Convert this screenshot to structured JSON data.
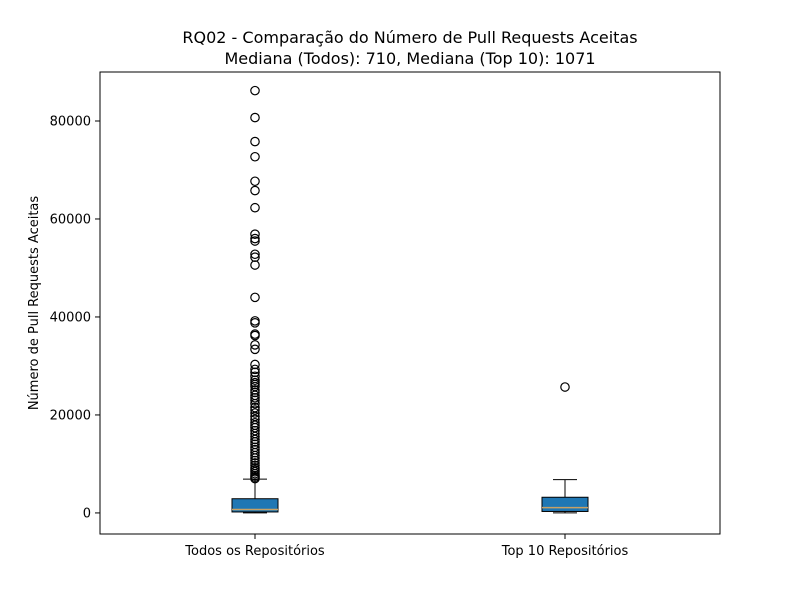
{
  "chart_data": {
    "type": "box",
    "title": "RQ02 - Comparação do Número de Pull Requests Aceitas",
    "subtitle": "Mediana (Todos): 710, Mediana (Top 10): 1071",
    "xlabel": "",
    "ylabel": "Número de Pull Requests Aceitas",
    "ylim": [
      -4300,
      90000
    ],
    "yticks": [
      0,
      20000,
      40000,
      60000,
      80000
    ],
    "ytick_labels": [
      "0",
      "20000",
      "40000",
      "60000",
      "80000"
    ],
    "categories": [
      "Todos os Repositórios",
      "Top 10 Repositórios"
    ],
    "grid": false,
    "box_color": "#1f77b4",
    "median_color": "#c8a165",
    "boxes": [
      {
        "label": "Todos os Repositórios",
        "whisker_low": 0,
        "q1": 200,
        "median": 710,
        "q3": 2900,
        "whisker_high": 6900,
        "outliers": [
          86200,
          80700,
          75800,
          72700,
          67700,
          65800,
          62300,
          56900,
          56000,
          55500,
          52800,
          52200,
          50600,
          44000,
          39200,
          38800,
          36500,
          36200,
          34300,
          33400,
          30300,
          29300,
          28700,
          27900,
          27100,
          26600,
          26200,
          25800,
          25100,
          24600,
          24000,
          23500,
          23000,
          22300,
          21500,
          21000,
          20400,
          19700,
          19100,
          18400,
          17900,
          17400,
          16800,
          16200,
          15600,
          15000,
          14500,
          14000,
          13400,
          12900,
          12300,
          11700,
          11200,
          10700,
          10200,
          9700,
          9200,
          8800,
          8400,
          8000,
          7600,
          7300,
          7000
        ]
      },
      {
        "label": "Top 10 Repositórios",
        "whisker_low": 0,
        "q1": 300,
        "median": 1071,
        "q3": 3200,
        "whisker_high": 6800,
        "outliers": [
          25700
        ]
      }
    ]
  }
}
